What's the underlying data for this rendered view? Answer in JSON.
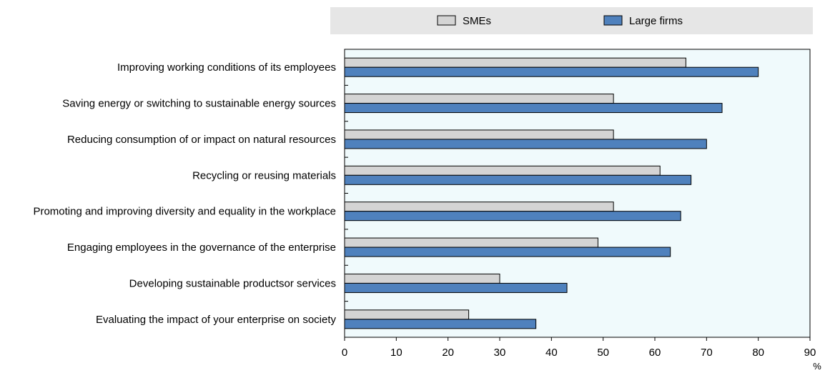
{
  "chart_data": {
    "type": "bar",
    "orientation": "horizontal",
    "categories": [
      "Improving working conditions of its employees",
      "Saving energy or switching to sustainable energy sources",
      "Reducing consumption of or impact on natural resources",
      "Recycling or reusing materials",
      "Promoting and improving diversity and equality in the workplace",
      "Engaging employees in the governance of the enterprise",
      "Developing sustainable productsor services",
      "Evaluating the impact of your enterprise on society"
    ],
    "series": [
      {
        "name": "SMEs",
        "color": "#d4d4d4",
        "values": [
          66,
          52,
          52,
          61,
          52,
          49,
          30,
          24
        ]
      },
      {
        "name": "Large firms",
        "color": "#4f81bd",
        "values": [
          80,
          73,
          70,
          67,
          65,
          63,
          43,
          37
        ]
      }
    ],
    "xlim": [
      0,
      90
    ],
    "xticks": [
      0,
      10,
      20,
      30,
      40,
      50,
      60,
      70,
      80,
      90
    ],
    "xunit": "%",
    "legend_position": "top",
    "plot_background": "#f0fafc",
    "legend_background": "#e6e6e6"
  }
}
